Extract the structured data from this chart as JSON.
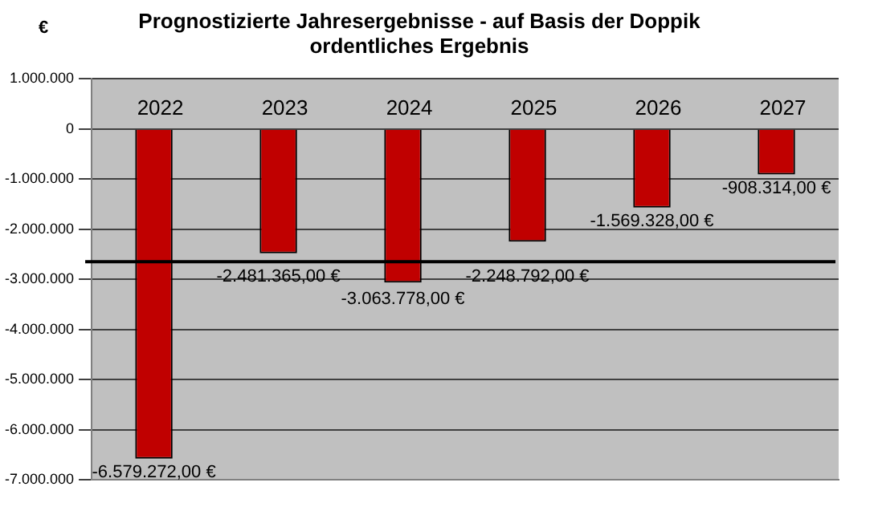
{
  "chart_data": {
    "type": "bar",
    "title": "Prognostizierte Jahresergebnisse - auf Basis der Doppik",
    "subtitle": "ordentliches Ergebnis",
    "ylabel": "€",
    "categories": [
      "2022",
      "2023",
      "2024",
      "2025",
      "2026",
      "2027"
    ],
    "values": [
      -6579272,
      -2481365,
      -3063778,
      -2248792,
      -1569328,
      -908314
    ],
    "color": "#c00000",
    "value_labels": [
      "-6.579.272,00 €",
      "-2.481.365,00 €",
      "-3.063.778,00 €",
      "-2.248.792,00 €",
      "-1.569.328,00 €",
      "-908.314,00 €"
    ],
    "ylim": [
      -7000000,
      1000000
    ],
    "yticks": [
      {
        "value": -7000000,
        "label": "-7.000.000"
      },
      {
        "value": -6000000,
        "label": "-6.000.000"
      },
      {
        "value": -5000000,
        "label": "-5.000.000"
      },
      {
        "value": -4000000,
        "label": "-4.000.000"
      },
      {
        "value": -3000000,
        "label": "-3.000.000"
      },
      {
        "value": -2000000,
        "label": "-2.000.000"
      },
      {
        "value": -1000000,
        "label": "-1.000.000"
      },
      {
        "value": 0,
        "label": "0"
      },
      {
        "value": 1000000,
        "label": "1.000.000"
      }
    ],
    "ref_lines": [
      {
        "axis": "y",
        "value": -2650000,
        "color": "#000000"
      }
    ],
    "grid": "y",
    "legend": false
  }
}
